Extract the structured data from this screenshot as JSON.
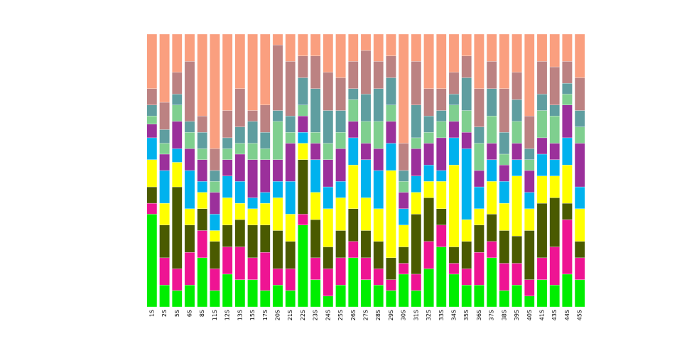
{
  "chart_data": {
    "type": "stacked-bar",
    "categories": [
      "1S",
      "2S",
      "5S",
      "6S",
      "8S",
      "11S",
      "12S",
      "13S",
      "15S",
      "17S",
      "20S",
      "21S",
      "22S",
      "23S",
      "24S",
      "25S",
      "26S",
      "27S",
      "28S",
      "29S",
      "30S",
      "31S",
      "32S",
      "33S",
      "34S",
      "35S",
      "36S",
      "37S",
      "38S",
      "39S",
      "40S",
      "41S",
      "43S",
      "44S",
      "45S"
    ],
    "ylim": [
      0,
      100
    ],
    "series": [
      {
        "color": "#00ee00",
        "values": [
          34,
          8,
          6,
          8,
          18,
          6,
          12,
          10,
          10,
          6,
          8,
          6,
          30,
          10,
          4,
          8,
          18,
          10,
          8,
          6,
          12,
          6,
          14,
          22,
          12,
          8,
          8,
          18,
          6,
          8,
          4,
          10,
          8,
          12,
          10
        ]
      },
      {
        "color": "#ee1493",
        "values": [
          4,
          10,
          8,
          12,
          10,
          8,
          10,
          12,
          8,
          14,
          6,
          8,
          4,
          8,
          10,
          10,
          6,
          8,
          6,
          4,
          4,
          6,
          10,
          8,
          4,
          6,
          12,
          6,
          10,
          8,
          6,
          8,
          14,
          20,
          8
        ]
      },
      {
        "color": "#4a5a00",
        "values": [
          6,
          12,
          30,
          10,
          8,
          10,
          8,
          10,
          12,
          10,
          14,
          10,
          20,
          14,
          8,
          10,
          12,
          10,
          10,
          8,
          6,
          22,
          16,
          6,
          6,
          10,
          10,
          10,
          12,
          10,
          18,
          20,
          18,
          6,
          6
        ]
      },
      {
        "color": "#ffff00",
        "values": [
          10,
          8,
          9,
          6,
          6,
          4,
          10,
          6,
          6,
          8,
          12,
          10,
          6,
          10,
          14,
          12,
          16,
          12,
          12,
          32,
          8,
          8,
          6,
          10,
          30,
          8,
          6,
          12,
          10,
          22,
          8,
          10,
          8,
          14,
          12
        ]
      },
      {
        "color": "#00b2ee",
        "values": [
          8,
          12,
          5,
          14,
          4,
          6,
          8,
          8,
          4,
          4,
          6,
          12,
          4,
          12,
          8,
          6,
          10,
          14,
          14,
          10,
          6,
          6,
          6,
          4,
          10,
          26,
          8,
          8,
          8,
          6,
          6,
          8,
          6,
          10,
          8
        ]
      },
      {
        "color": "#9b309b",
        "values": [
          5,
          6,
          10,
          8,
          8,
          8,
          6,
          10,
          14,
          12,
          8,
          14,
          6,
          6,
          10,
          12,
          6,
          6,
          8,
          8,
          6,
          10,
          8,
          12,
          6,
          6,
          6,
          6,
          6,
          6,
          8,
          6,
          6,
          12,
          16
        ]
      },
      {
        "color": "#7fcf8f",
        "values": [
          3,
          4,
          6,
          6,
          4,
          4,
          4,
          4,
          6,
          4,
          14,
          4,
          4,
          4,
          6,
          6,
          8,
          8,
          10,
          6,
          4,
          4,
          4,
          6,
          6,
          8,
          10,
          10,
          4,
          8,
          4,
          10,
          10,
          4,
          6
        ]
      },
      {
        "color": "#5f9ea0",
        "values": [
          4,
          5,
          4,
          4,
          6,
          4,
          4,
          6,
          8,
          6,
          4,
          6,
          10,
          16,
          12,
          8,
          4,
          10,
          12,
          10,
          4,
          12,
          6,
          4,
          4,
          12,
          6,
          10,
          8,
          8,
          4,
          6,
          4,
          4,
          6
        ]
      },
      {
        "color": "#bc8282",
        "values": [
          6,
          10,
          8,
          22,
          6,
          8,
          10,
          14,
          4,
          10,
          24,
          20,
          8,
          12,
          14,
          12,
          10,
          16,
          10,
          8,
          10,
          16,
          10,
          8,
          8,
          8,
          14,
          10,
          16,
          10,
          12,
          12,
          14,
          8,
          12
        ]
      },
      {
        "color": "#fa9f7f",
        "values": [
          20,
          25,
          14,
          10,
          30,
          42,
          28,
          20,
          28,
          26,
          4,
          10,
          8,
          8,
          14,
          16,
          10,
          6,
          10,
          8,
          40,
          10,
          20,
          20,
          14,
          8,
          20,
          10,
          20,
          14,
          30,
          10,
          12,
          10,
          16
        ]
      }
    ]
  }
}
